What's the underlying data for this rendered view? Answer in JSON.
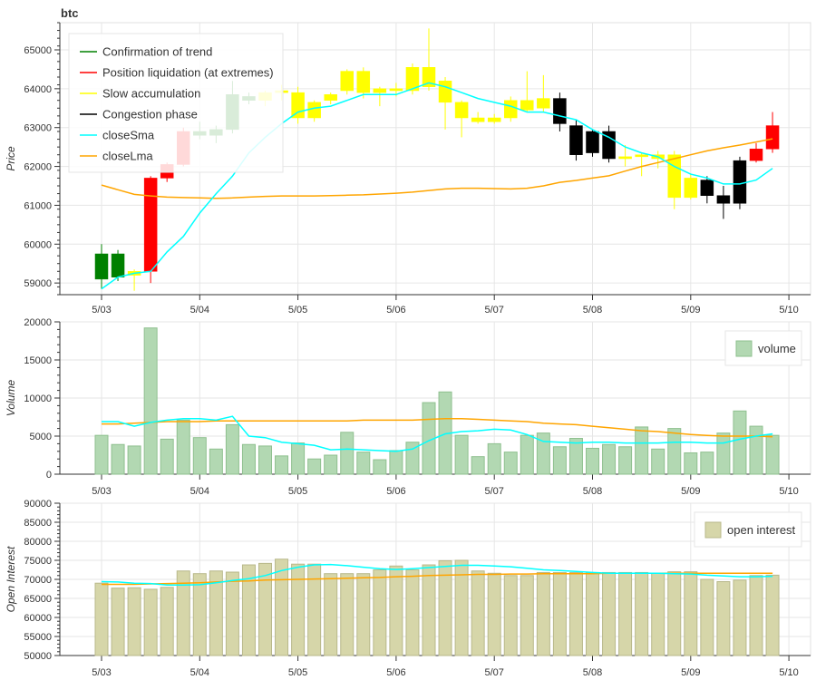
{
  "chart_data": [
    {
      "type": "candlestick",
      "title": "btc",
      "ylabel": "Price",
      "ylim": [
        58700,
        65700
      ],
      "yticks": [
        59000,
        60000,
        61000,
        62000,
        63000,
        64000,
        65000
      ],
      "xticks": [
        "5/03",
        "5/04",
        "5/05",
        "5/06",
        "5/07",
        "5/08",
        "5/09",
        "5/10"
      ],
      "grid": true,
      "legend_position": "top-left",
      "legend": [
        {
          "label": "Confirmation of trend",
          "color": "#008000"
        },
        {
          "label": "Position liquidation (at extremes)",
          "color": "#ff0000"
        },
        {
          "label": "Slow accumulation",
          "color": "#ffff00"
        },
        {
          "label": "Congestion phase",
          "color": "#000000"
        },
        {
          "label": "closeSma",
          "color": "#00ffff"
        },
        {
          "label": "closeLma",
          "color": "#ffa500"
        }
      ],
      "phase_colors": {
        "trend": "#008000",
        "liquidation": "#ff0000",
        "accumulation": "#ffff00",
        "congestion": "#000000"
      },
      "candles": [
        {
          "t": 0,
          "o": 59100,
          "h": 60000,
          "l": 58850,
          "c": 59750,
          "phase": "trend"
        },
        {
          "t": 1,
          "o": 59150,
          "h": 59850,
          "l": 59050,
          "c": 59750,
          "phase": "trend"
        },
        {
          "t": 2,
          "o": 59300,
          "h": 59350,
          "l": 58800,
          "c": 59200,
          "phase": "accumulation"
        },
        {
          "t": 3,
          "o": 59300,
          "h": 61750,
          "l": 59000,
          "c": 61700,
          "phase": "liquidation"
        },
        {
          "t": 4,
          "o": 61700,
          "h": 62100,
          "l": 61600,
          "c": 62050,
          "phase": "liquidation"
        },
        {
          "t": 5,
          "o": 62050,
          "h": 63000,
          "l": 62000,
          "c": 62900,
          "phase": "liquidation"
        },
        {
          "t": 6,
          "o": 62800,
          "h": 63150,
          "l": 62700,
          "c": 62900,
          "phase": "trend"
        },
        {
          "t": 7,
          "o": 62800,
          "h": 63050,
          "l": 62600,
          "c": 62950,
          "phase": "trend"
        },
        {
          "t": 8,
          "o": 62950,
          "h": 64200,
          "l": 62850,
          "c": 63850,
          "phase": "trend"
        },
        {
          "t": 9,
          "o": 63700,
          "h": 63900,
          "l": 63600,
          "c": 63800,
          "phase": "trend"
        },
        {
          "t": 10,
          "o": 63700,
          "h": 63950,
          "l": 63550,
          "c": 63900,
          "phase": "accumulation"
        },
        {
          "t": 11,
          "o": 63900,
          "h": 64100,
          "l": 63700,
          "c": 63950,
          "phase": "accumulation"
        },
        {
          "t": 12,
          "o": 63900,
          "h": 64050,
          "l": 63100,
          "c": 63250,
          "phase": "accumulation"
        },
        {
          "t": 13,
          "o": 63250,
          "h": 63700,
          "l": 63150,
          "c": 63650,
          "phase": "accumulation"
        },
        {
          "t": 14,
          "o": 63700,
          "h": 63900,
          "l": 63600,
          "c": 63850,
          "phase": "accumulation"
        },
        {
          "t": 15,
          "o": 63950,
          "h": 64500,
          "l": 63850,
          "c": 64450,
          "phase": "accumulation"
        },
        {
          "t": 16,
          "o": 64450,
          "h": 64550,
          "l": 63750,
          "c": 63900,
          "phase": "accumulation"
        },
        {
          "t": 17,
          "o": 63900,
          "h": 64050,
          "l": 63550,
          "c": 64000,
          "phase": "accumulation"
        },
        {
          "t": 18,
          "o": 64000,
          "h": 64150,
          "l": 63800,
          "c": 63950,
          "phase": "accumulation"
        },
        {
          "t": 19,
          "o": 63950,
          "h": 64650,
          "l": 63850,
          "c": 64550,
          "phase": "accumulation"
        },
        {
          "t": 20,
          "o": 64550,
          "h": 65550,
          "l": 63950,
          "c": 64050,
          "phase": "accumulation"
        },
        {
          "t": 21,
          "o": 64200,
          "h": 64300,
          "l": 62950,
          "c": 63650,
          "phase": "accumulation"
        },
        {
          "t": 22,
          "o": 63650,
          "h": 63700,
          "l": 62750,
          "c": 63250,
          "phase": "accumulation"
        },
        {
          "t": 23,
          "o": 63250,
          "h": 63400,
          "l": 63100,
          "c": 63150,
          "phase": "accumulation"
        },
        {
          "t": 24,
          "o": 63150,
          "h": 63350,
          "l": 63100,
          "c": 63250,
          "phase": "accumulation"
        },
        {
          "t": 25,
          "o": 63250,
          "h": 63800,
          "l": 63150,
          "c": 63700,
          "phase": "accumulation"
        },
        {
          "t": 26,
          "o": 63700,
          "h": 64450,
          "l": 63400,
          "c": 63450,
          "phase": "accumulation"
        },
        {
          "t": 27,
          "o": 63500,
          "h": 64350,
          "l": 63400,
          "c": 63750,
          "phase": "accumulation"
        },
        {
          "t": 28,
          "o": 63750,
          "h": 63900,
          "l": 62900,
          "c": 63100,
          "phase": "congestion"
        },
        {
          "t": 29,
          "o": 63050,
          "h": 63200,
          "l": 62150,
          "c": 62300,
          "phase": "congestion"
        },
        {
          "t": 30,
          "o": 62350,
          "h": 62950,
          "l": 62250,
          "c": 62900,
          "phase": "congestion"
        },
        {
          "t": 31,
          "o": 62900,
          "h": 63050,
          "l": 62100,
          "c": 62200,
          "phase": "congestion"
        },
        {
          "t": 32,
          "o": 62200,
          "h": 62550,
          "l": 62000,
          "c": 62250,
          "phase": "accumulation"
        },
        {
          "t": 33,
          "o": 62250,
          "h": 62350,
          "l": 61750,
          "c": 62300,
          "phase": "accumulation"
        },
        {
          "t": 34,
          "o": 62300,
          "h": 62400,
          "l": 61950,
          "c": 62200,
          "phase": "accumulation"
        },
        {
          "t": 35,
          "o": 62300,
          "h": 62400,
          "l": 60900,
          "c": 61200,
          "phase": "accumulation"
        },
        {
          "t": 36,
          "o": 61200,
          "h": 61800,
          "l": 61150,
          "c": 61700,
          "phase": "accumulation"
        },
        {
          "t": 37,
          "o": 61650,
          "h": 61750,
          "l": 61050,
          "c": 61250,
          "phase": "congestion"
        },
        {
          "t": 38,
          "o": 61250,
          "h": 61500,
          "l": 60650,
          "c": 61050,
          "phase": "congestion"
        },
        {
          "t": 39,
          "o": 61050,
          "h": 62250,
          "l": 60900,
          "c": 62150,
          "phase": "congestion"
        },
        {
          "t": 40,
          "o": 62150,
          "h": 62600,
          "l": 62100,
          "c": 62450,
          "phase": "liquidation"
        },
        {
          "t": 41,
          "o": 62450,
          "h": 63400,
          "l": 62350,
          "c": 63050,
          "phase": "liquidation"
        }
      ],
      "closeSma": [
        58850,
        59150,
        59250,
        59300,
        59800,
        60200,
        60800,
        61300,
        61750,
        62350,
        62750,
        63100,
        63400,
        63500,
        63550,
        63700,
        63850,
        63850,
        63850,
        64000,
        64150,
        64050,
        63900,
        63750,
        63650,
        63550,
        63400,
        63400,
        63300,
        63200,
        62950,
        62750,
        62500,
        62350,
        62250,
        62000,
        61800,
        61700,
        61550,
        61550,
        61650,
        61950
      ],
      "closeLma": [
        61520,
        61400,
        61280,
        61240,
        61210,
        61200,
        61190,
        61180,
        61190,
        61210,
        61230,
        61240,
        61240,
        61240,
        61250,
        61260,
        61270,
        61290,
        61310,
        61340,
        61380,
        61420,
        61440,
        61440,
        61430,
        61420,
        61440,
        61500,
        61590,
        61640,
        61700,
        61760,
        61880,
        62000,
        62100,
        62200,
        62300,
        62400,
        62480,
        62550,
        62630,
        62710
      ]
    },
    {
      "type": "bar",
      "ylabel": "Volume",
      "ylim": [
        0,
        20000
      ],
      "yticks": [
        0,
        5000,
        10000,
        15000,
        20000
      ],
      "xticks": [
        "5/03",
        "5/04",
        "5/05",
        "5/06",
        "5/07",
        "5/08",
        "5/09",
        "5/10"
      ],
      "grid": true,
      "legend_position": "top-right",
      "series_label": "volume",
      "bar_color": "#b2d8b2",
      "bar_edge": "#8fc08f",
      "values": [
        5100,
        3900,
        3700,
        19200,
        4600,
        7100,
        4800,
        3300,
        6500,
        3900,
        3700,
        2400,
        4100,
        2000,
        2500,
        5500,
        2900,
        1900,
        3100,
        4200,
        9400,
        10800,
        5100,
        2300,
        4000,
        2900,
        5100,
        5400,
        3600,
        4700,
        3400,
        3900,
        3600,
        6200,
        3300,
        6000,
        2800,
        2900,
        5400,
        8300,
        6300,
        5100
      ],
      "sma": [
        6900,
        6900,
        6300,
        6800,
        7100,
        7300,
        7300,
        7100,
        7600,
        5000,
        4800,
        4200,
        4000,
        3800,
        3200,
        3300,
        3200,
        3100,
        3000,
        3300,
        4400,
        5300,
        5600,
        5700,
        5900,
        5800,
        5200,
        4300,
        4200,
        4100,
        4200,
        4200,
        4100,
        4100,
        4100,
        4200,
        4200,
        4100,
        4100,
        4600,
        5000,
        5300
      ],
      "lma": [
        6600,
        6600,
        6700,
        6800,
        6900,
        6900,
        6900,
        7000,
        7000,
        7000,
        7000,
        7000,
        7000,
        7000,
        7000,
        7000,
        7100,
        7100,
        7100,
        7100,
        7200,
        7300,
        7300,
        7200,
        7100,
        7000,
        6900,
        6700,
        6600,
        6500,
        6300,
        6100,
        5900,
        5700,
        5600,
        5400,
        5200,
        5100,
        5000,
        5000,
        5000,
        4900
      ]
    },
    {
      "type": "bar",
      "ylabel": "Open Interest",
      "ylim": [
        50000,
        90000
      ],
      "yticks": [
        50000,
        55000,
        60000,
        65000,
        70000,
        75000,
        80000,
        85000,
        90000
      ],
      "xticks": [
        "5/03",
        "5/04",
        "5/05",
        "5/06",
        "5/07",
        "5/08",
        "5/09",
        "5/10"
      ],
      "grid": true,
      "legend_position": "top-right",
      "series_label": "open interest",
      "bar_color": "#d6d6a9",
      "bar_edge": "#b8b88a",
      "values": [
        69000,
        67700,
        67800,
        67400,
        67900,
        72200,
        71500,
        72200,
        71900,
        73800,
        74200,
        75300,
        74000,
        74000,
        71500,
        71500,
        71500,
        72500,
        73500,
        72500,
        73800,
        74900,
        75000,
        72200,
        71600,
        71000,
        71000,
        71800,
        71800,
        71800,
        71800,
        71800,
        71800,
        71800,
        71600,
        72000,
        72000,
        70000,
        69400,
        69800,
        71000,
        71100
      ],
      "sma": [
        69400,
        69300,
        69000,
        68900,
        68500,
        68500,
        68600,
        69100,
        69700,
        70200,
        71000,
        72300,
        73200,
        73800,
        73900,
        73600,
        73200,
        72800,
        72600,
        72800,
        73100,
        73400,
        73700,
        73700,
        73500,
        73300,
        72900,
        72500,
        72300,
        72100,
        71800,
        71600,
        71600,
        71600,
        71600,
        71500,
        71400,
        71100,
        70900,
        70700,
        70700,
        70800
      ],
      "lma": [
        68700,
        68700,
        68700,
        68800,
        68900,
        69000,
        69100,
        69300,
        69500,
        69600,
        69800,
        69900,
        70000,
        70100,
        70200,
        70300,
        70400,
        70500,
        70700,
        70800,
        71000,
        71100,
        71200,
        71300,
        71300,
        71400,
        71400,
        71500,
        71500,
        71500,
        71500,
        71600,
        71600,
        71600,
        71600,
        71600,
        71600,
        71600,
        71600,
        71600,
        71600,
        71600
      ]
    }
  ]
}
